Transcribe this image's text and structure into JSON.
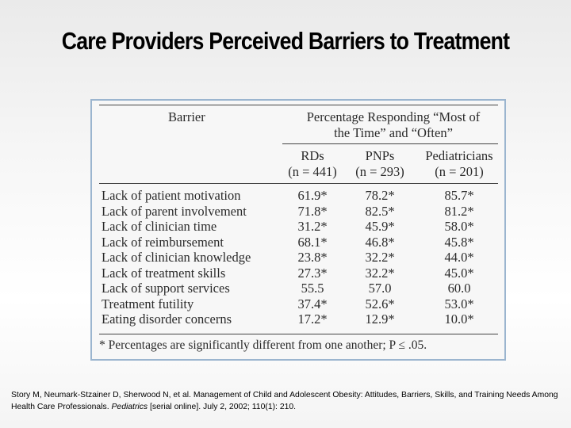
{
  "slide": {
    "title": "Care Providers Perceived Barriers to Treatment"
  },
  "table": {
    "header_barrier": "Barrier",
    "header_group_line1": "Percentage Responding “Most of",
    "header_group_line2": "the Time” and “Often”",
    "columns": [
      {
        "name": "RDs",
        "n": "(n = 441)"
      },
      {
        "name": "PNPs",
        "n": "(n = 293)"
      },
      {
        "name": "Pediatricians",
        "n": "(n = 201)"
      }
    ],
    "rows": [
      {
        "barrier": "Lack of patient motivation",
        "rd": "61.9*",
        "pnp": "78.2*",
        "ped": "85.7*"
      },
      {
        "barrier": "Lack of parent involvement",
        "rd": "71.8*",
        "pnp": "82.5*",
        "ped": "81.2*"
      },
      {
        "barrier": "Lack of clinician time",
        "rd": "31.2*",
        "pnp": "45.9*",
        "ped": "58.0*"
      },
      {
        "barrier": "Lack of reimbursement",
        "rd": "68.1*",
        "pnp": "46.8*",
        "ped": "45.8*"
      },
      {
        "barrier": "Lack of clinician knowledge",
        "rd": "23.8*",
        "pnp": "32.2*",
        "ped": "44.0*"
      },
      {
        "barrier": "Lack of treatment skills",
        "rd": "27.3*",
        "pnp": "32.2*",
        "ped": "45.0*"
      },
      {
        "barrier": "Lack of support services",
        "rd": "55.5",
        "pnp": "57.0",
        "ped": "60.0"
      },
      {
        "barrier": "Treatment futility",
        "rd": "37.4*",
        "pnp": "52.6*",
        "ped": "53.0*"
      },
      {
        "barrier": "Eating disorder concerns",
        "rd": "17.2*",
        "pnp": "12.9*",
        "ped": "10.0*"
      }
    ],
    "footnote": "* Percentages are significantly different from one another; P ≤ .05."
  },
  "citation": {
    "part1": "Story M, Neumark-Stzainer D, Sherwood N, et al. Management of Child and Adolescent Obesity: Attitudes, Barriers, Skills, and Training Needs Among Health Care Professionals. ",
    "journal": "Pediatrics",
    "part2": " [serial online]. July 2, 2002; 110(1): 210."
  }
}
